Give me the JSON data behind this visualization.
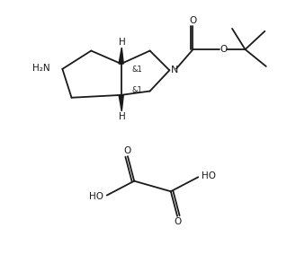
{
  "background_color": "#ffffff",
  "line_color": "#1a1a1a",
  "line_width": 1.3,
  "font_size": 7.5,
  "figsize": [
    3.39,
    2.93
  ],
  "dpi": 100,
  "xlim": [
    0,
    10
  ],
  "ylim": [
    0,
    10
  ]
}
